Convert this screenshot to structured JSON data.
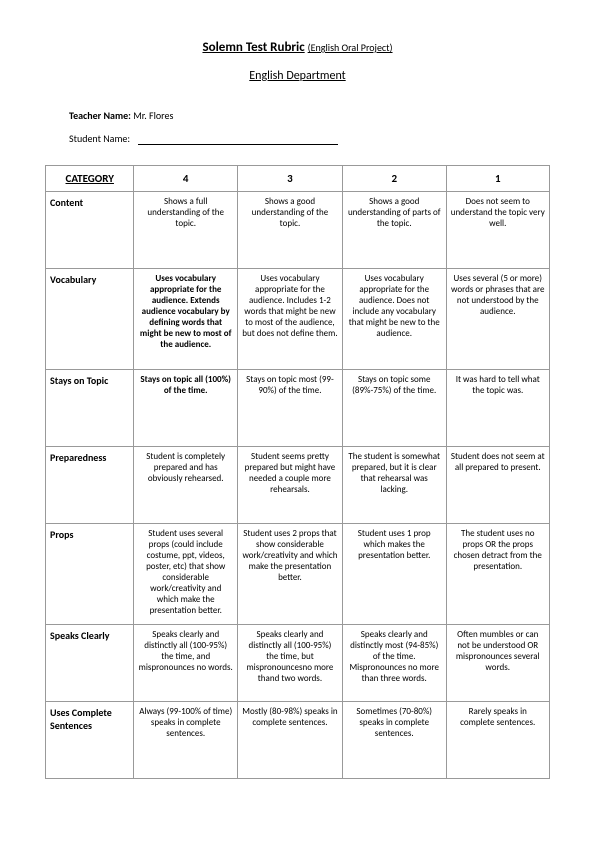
{
  "header": {
    "title_main": "Solemn Test Rubric",
    "title_sub": "(English Oral Project)",
    "department": "English Department",
    "teacher_label": "Teacher Name:",
    "teacher_name": "Mr. Flores",
    "student_label": "Student Name:"
  },
  "table": {
    "headers": [
      "CATEGORY",
      "4",
      "3",
      "2",
      "1"
    ],
    "rows": [
      {
        "category": "Content",
        "cells": [
          {
            "text": "Shows a full understanding of the topic.",
            "bold": false
          },
          {
            "text": "Shows a good understanding of the topic.",
            "bold": false
          },
          {
            "text": "Shows a good understanding of parts of the topic.",
            "bold": false
          },
          {
            "text": "Does not seem to understand the topic very well.",
            "bold": false
          }
        ],
        "tall": true
      },
      {
        "category": "Vocabulary",
        "cells": [
          {
            "text": "Uses vocabulary appropriate for the audience. Extends audience vocabulary by defining words that might be new to most of the audience.",
            "bold": true
          },
          {
            "text": "Uses vocabulary appropriate for the audience. Includes 1-2 words that might be new to most of the audience, but does not define them.",
            "bold": false
          },
          {
            "text": "Uses vocabulary appropriate for the audience. Does not include any vocabulary that might be new to the audience.",
            "bold": false
          },
          {
            "text": "Uses several (5 or more) words or phrases that are not understood by the audience.",
            "bold": false
          }
        ],
        "vtall": true
      },
      {
        "category": "Stays on Topic",
        "cells": [
          {
            "text": "Stays on topic all (100%) of the time.",
            "bold": true
          },
          {
            "text": "Stays on topic most (99-90%) of the time.",
            "bold": false
          },
          {
            "text": "Stays on topic some (89%-75%) of the time.",
            "bold": false
          },
          {
            "text": "It was hard to tell what the topic was.",
            "bold": false
          }
        ],
        "tall": true
      },
      {
        "category": "Preparedness",
        "cells": [
          {
            "text": "Student is completely prepared and has obviously rehearsed.",
            "bold": false
          },
          {
            "text": "Student seems pretty prepared but might have needed a couple more rehearsals.",
            "bold": false
          },
          {
            "text": "The student is somewhat prepared, but it is clear that rehearsal was lacking.",
            "bold": false
          },
          {
            "text": "Student does not seem at all prepared to present.",
            "bold": false
          }
        ],
        "tall": true
      },
      {
        "category": "Props",
        "cells": [
          {
            "text": "Student uses several props (could include costume, ppt, videos, poster, etc) that show considerable work/creativity and which make the presentation better.",
            "bold": false
          },
          {
            "text": "Student uses 2 props that show considerable work/creativity and which make the presentation better.",
            "bold": false
          },
          {
            "text": "Student uses 1 prop which makes the presentation better.",
            "bold": false
          },
          {
            "text": "The student uses no props OR the props chosen detract from the presentation.",
            "bold": false
          }
        ],
        "vtall": true
      },
      {
        "category": "Speaks Clearly",
        "cells": [
          {
            "text": "Speaks clearly and distinctly all (100-95%) the time, and mispronounces no words.",
            "bold": false
          },
          {
            "text": "Speaks clearly and distinctly all (100-95%) the time, but mispronouncesno more thand two words.",
            "bold": false
          },
          {
            "text": "Speaks clearly and distinctly most (94-85%) of the time. Mispronounces no more than three words.",
            "bold": false
          },
          {
            "text": "Often mumbles or can not be understood OR mispronounces several words.",
            "bold": false
          }
        ],
        "tall": true
      },
      {
        "category": "Uses Complete Sentences",
        "cells": [
          {
            "text": "Always (99-100% of time) speaks in complete sentences.",
            "bold": false
          },
          {
            "text": "Mostly (80-98%) speaks in complete sentences.",
            "bold": false
          },
          {
            "text": "Sometimes (70-80%) speaks in complete sentences.",
            "bold": false
          },
          {
            "text": "Rarely speaks in complete sentences.",
            "bold": false
          }
        ],
        "tall": true
      }
    ]
  }
}
